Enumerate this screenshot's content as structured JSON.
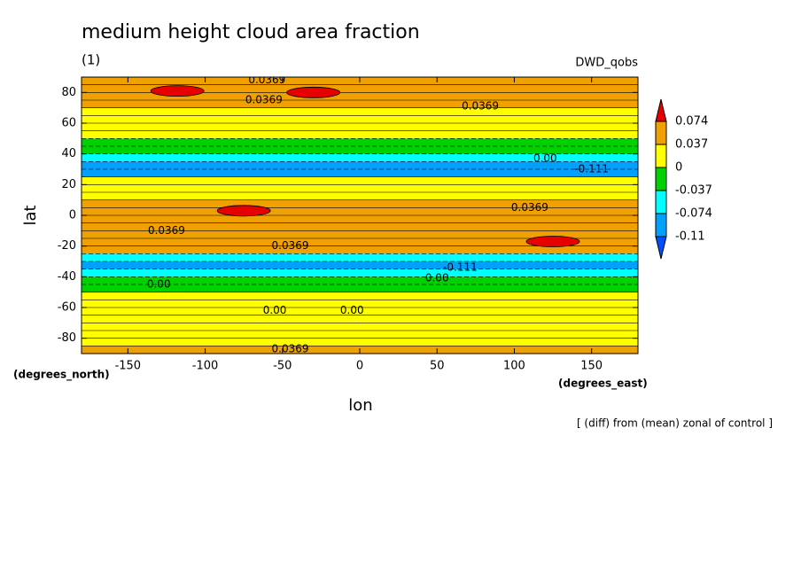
{
  "chart_data": {
    "type": "contour",
    "title": "medium height cloud area fraction",
    "subtitle": "(1)",
    "model": "DWD_qobs",
    "xlabel": "lon",
    "ylabel": "lat",
    "xunits": "(degrees_east)",
    "yunits": "(degrees_north)",
    "note": "[ (diff) from (mean) zonal of control ]",
    "xlim": [
      -180,
      180
    ],
    "ylim": [
      -90,
      90
    ],
    "xticks": [
      -150,
      -100,
      -50,
      0,
      50,
      100,
      150
    ],
    "yticks": [
      -80,
      -60,
      -40,
      -20,
      0,
      20,
      40,
      60,
      80
    ],
    "levels": [
      -0.11,
      -0.074,
      -0.037,
      0,
      0.037,
      0.074
    ],
    "colors": [
      "#0050ff",
      "#00a0ff",
      "#00ffff",
      "#00d200",
      "#ffff00",
      "#f0a000",
      "#e60000"
    ],
    "lat": [
      87.5,
      82.5,
      77.5,
      72.5,
      67.5,
      62.5,
      57.5,
      52.5,
      47.5,
      42.5,
      37.5,
      32.5,
      27.5,
      22.5,
      17.5,
      12.5,
      7.5,
      2.5,
      -2.5,
      -7.5,
      -12.5,
      -17.5,
      -22.5,
      -27.5,
      -32.5,
      -37.5,
      -42.5,
      -47.5,
      -52.5,
      -57.5,
      -62.5,
      -67.5,
      -72.5,
      -77.5,
      -82.5,
      -87.5
    ],
    "values": [
      0.05,
      0.05,
      0.045,
      0.04,
      0.02,
      0.015,
      0.01,
      0.01,
      -0.02,
      -0.03,
      -0.06,
      -0.09,
      -0.08,
      0.01,
      0.02,
      0.03,
      0.045,
      0.05,
      0.05,
      0.045,
      0.04,
      0.04,
      0.045,
      -0.06,
      -0.09,
      -0.05,
      -0.02,
      -0.02,
      0.01,
      0.01,
      0.015,
      0.02,
      0.01,
      0.02,
      0.03,
      0.045
    ],
    "blobs": [
      {
        "lon": -118,
        "lat": 81,
        "value": 0.08
      },
      {
        "lon": -30,
        "lat": 80,
        "value": 0.08
      },
      {
        "lon": -75,
        "lat": 3,
        "value": 0.08
      },
      {
        "lon": 125,
        "lat": -17,
        "value": 0.08
      }
    ],
    "annotations": [
      {
        "text": "0.0369",
        "lon": -60,
        "lat": 88
      },
      {
        "text": "0.0369",
        "lon": -62,
        "lat": 75
      },
      {
        "text": "0.0369",
        "lon": 78,
        "lat": 71
      },
      {
        "text": "0.00",
        "lon": 120,
        "lat": 37
      },
      {
        "text": "-0.111",
        "lon": 150,
        "lat": 30
      },
      {
        "text": "0.0369",
        "lon": 110,
        "lat": 5
      },
      {
        "text": "0.0369",
        "lon": -125,
        "lat": -10
      },
      {
        "text": "0.0369",
        "lon": -45,
        "lat": -20
      },
      {
        "text": "-0.111",
        "lon": 65,
        "lat": -34
      },
      {
        "text": "0.00",
        "lon": 50,
        "lat": -41
      },
      {
        "text": "0.00",
        "lon": -130,
        "lat": -45
      },
      {
        "text": "0.00",
        "lon": -55,
        "lat": -62
      },
      {
        "text": "0.00",
        "lon": -5,
        "lat": -62
      },
      {
        "text": "0.0369",
        "lon": -45,
        "lat": -87
      }
    ]
  }
}
